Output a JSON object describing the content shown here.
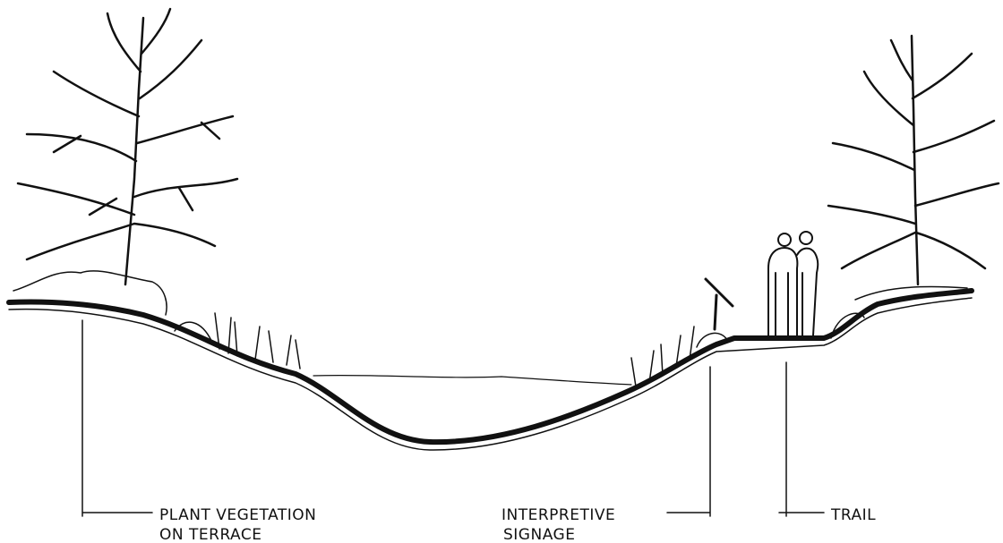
{
  "labels": [
    {
      "line1": "PLANT VEGETATION",
      "line2": "ON TERRACE"
    },
    {
      "line1": "INTERPRETIVE",
      "line2": "SIGNAGE"
    },
    {
      "line1": "TRAIL"
    }
  ]
}
